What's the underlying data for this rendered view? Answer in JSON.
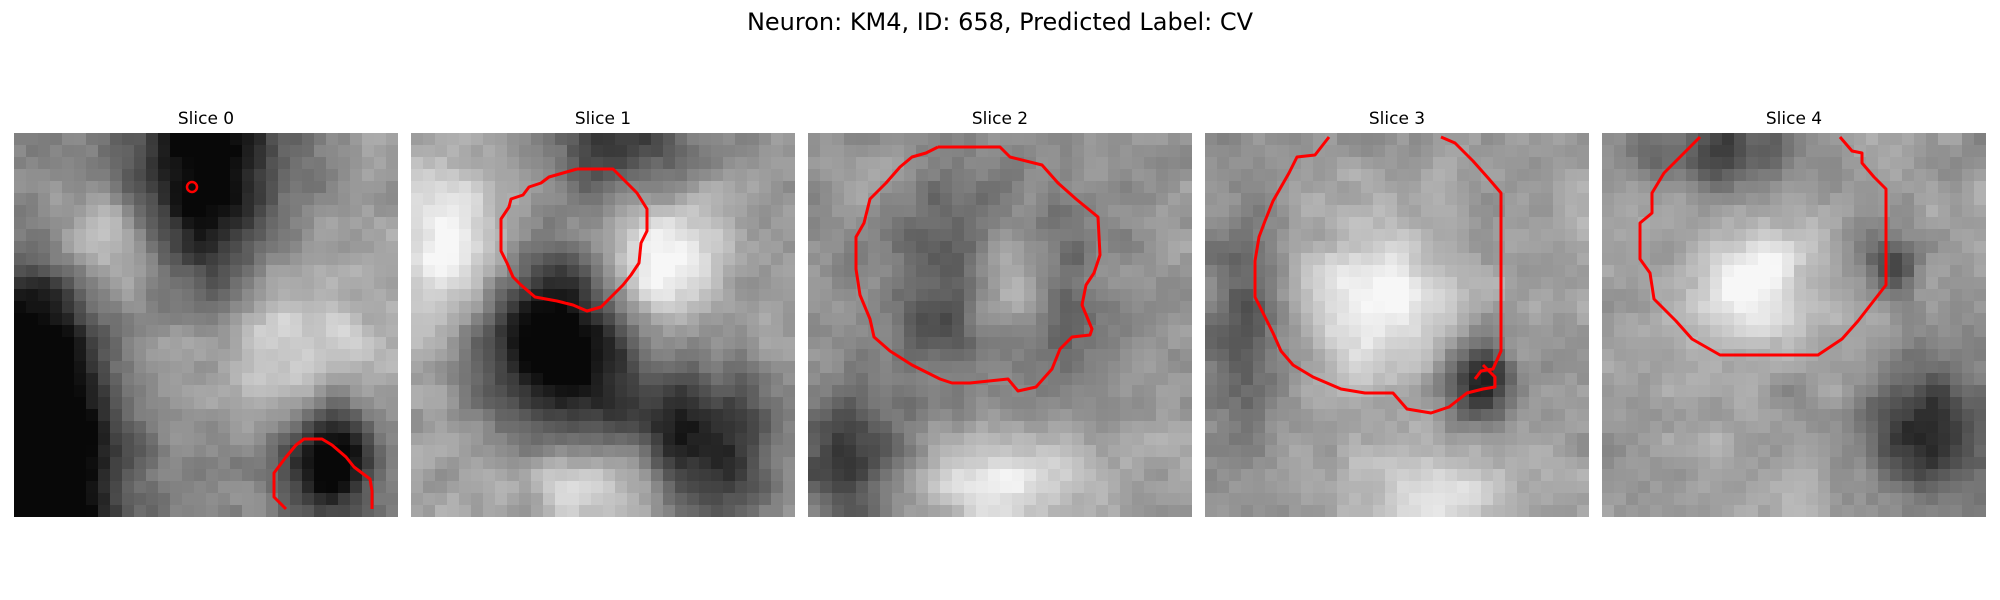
{
  "figure": {
    "title": "Neuron: KM4, ID: 658, Predicted Label: CV",
    "contour_color": "#ff0000"
  },
  "panels": [
    {
      "title": "Slice 0",
      "seed": 11,
      "dark_regions": [
        [
          0.5,
          0.15,
          0.2,
          0.6,
          0.7
        ],
        [
          0.1,
          0.85,
          0.2,
          0.5,
          0.7
        ],
        [
          0.82,
          0.85,
          0.12,
          0.14,
          0.8
        ],
        [
          0.05,
          0.5,
          0.14,
          0.3,
          0.35
        ]
      ],
      "light_regions": [
        [
          0.55,
          0.55,
          0.3,
          0.25,
          0.45
        ],
        [
          0.2,
          0.3,
          0.2,
          0.15,
          0.35
        ]
      ]
    },
    {
      "title": "Slice 1",
      "seed": 23,
      "dark_regions": [
        [
          0.38,
          0.55,
          0.2,
          0.22,
          0.75
        ],
        [
          0.75,
          0.82,
          0.2,
          0.2,
          0.55
        ],
        [
          0.55,
          0.05,
          0.2,
          0.1,
          0.4
        ]
      ],
      "light_regions": [
        [
          0.65,
          0.35,
          0.14,
          0.16,
          0.45
        ],
        [
          0.1,
          0.3,
          0.15,
          0.2,
          0.4
        ],
        [
          0.5,
          0.92,
          0.2,
          0.1,
          0.35
        ]
      ]
    },
    {
      "title": "Slice 2",
      "seed": 37,
      "dark_regions": [
        [
          0.48,
          0.4,
          0.3,
          0.3,
          0.35
        ],
        [
          0.1,
          0.85,
          0.15,
          0.2,
          0.4
        ]
      ],
      "light_regions": [
        [
          0.52,
          0.4,
          0.1,
          0.16,
          0.45
        ],
        [
          0.5,
          0.9,
          0.2,
          0.12,
          0.35
        ]
      ]
    },
    {
      "title": "Slice 3",
      "seed": 53,
      "dark_regions": [
        [
          0.72,
          0.65,
          0.08,
          0.1,
          0.6
        ],
        [
          0.1,
          0.5,
          0.1,
          0.3,
          0.3
        ]
      ],
      "light_regions": [
        [
          0.45,
          0.45,
          0.18,
          0.18,
          0.4
        ],
        [
          0.6,
          0.95,
          0.2,
          0.1,
          0.3
        ]
      ]
    },
    {
      "title": "Slice 4",
      "seed": 71,
      "dark_regions": [
        [
          0.85,
          0.78,
          0.15,
          0.18,
          0.5
        ],
        [
          0.3,
          0.05,
          0.2,
          0.1,
          0.35
        ],
        [
          0.75,
          0.35,
          0.06,
          0.08,
          0.45
        ]
      ],
      "light_regions": [
        [
          0.4,
          0.4,
          0.16,
          0.16,
          0.35
        ]
      ]
    }
  ]
}
